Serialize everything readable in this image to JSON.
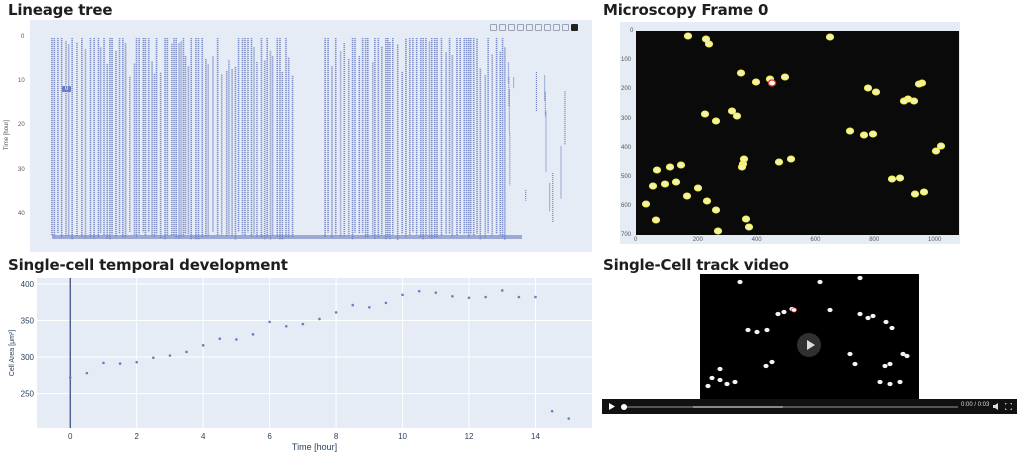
{
  "panels": {
    "lineage": {
      "title": "Lineage tree",
      "y_label": "Time [hour]",
      "y_ticks": [
        "0",
        "10",
        "20",
        "30",
        "40"
      ],
      "hover_label": "0"
    },
    "microscopy": {
      "title": "Microscopy Frame 0",
      "y_ticks": [
        "0",
        "100",
        "200",
        "300",
        "400",
        "500",
        "600",
        "700"
      ],
      "x_ticks": [
        "0",
        "200",
        "400",
        "600",
        "800",
        "1000"
      ]
    },
    "development": {
      "title": "Single-cell temporal development"
    },
    "video": {
      "title": "Single-Cell track video",
      "time_display": "0:00 / 0:03"
    }
  },
  "modebar_icons": [
    "camera-icon",
    "zoom-icon",
    "pan-icon",
    "box-select-icon",
    "lasso-icon",
    "zoom-in-icon",
    "zoom-out-icon",
    "autoscale-icon",
    "reset-axes-icon",
    "plotly-logo-icon"
  ],
  "colors": {
    "plot_bg": "#e5ecf6",
    "marker": "#6b7dc0",
    "cell_outline": "#f5f246",
    "selected_cell": "#e8302a"
  },
  "chart_data": [
    {
      "type": "scatter",
      "title": "Single-cell temporal development",
      "xlabel": "Time [hour]",
      "ylabel": "Cell Area [μm²]",
      "x_ticks": [
        "0",
        "2",
        "4",
        "6",
        "8",
        "10",
        "12",
        "14"
      ],
      "y_ticks": [
        "250",
        "300",
        "350",
        "400"
      ],
      "xlim": [
        -1,
        15.7
      ],
      "ylim": [
        203,
        408
      ],
      "grid": true,
      "vertical_line_x": 0,
      "series": [
        {
          "x": [
            0,
            0.5,
            1,
            1.5,
            2,
            2.5,
            3,
            3.5,
            4,
            4.5,
            5,
            5.5,
            6,
            6.5,
            7,
            7.5,
            8,
            8.5,
            9,
            9.5,
            10,
            10.5,
            11,
            11.5,
            12,
            12.5,
            13,
            13.5,
            14,
            14.5,
            15
          ],
          "y": [
            272,
            278,
            292,
            291,
            293,
            299,
            302,
            307,
            316,
            325,
            324,
            331,
            348,
            342,
            345,
            352,
            361,
            371,
            368,
            374,
            385,
            390,
            388,
            383,
            381,
            382,
            391,
            382,
            382,
            226,
            216
          ]
        }
      ]
    }
  ]
}
